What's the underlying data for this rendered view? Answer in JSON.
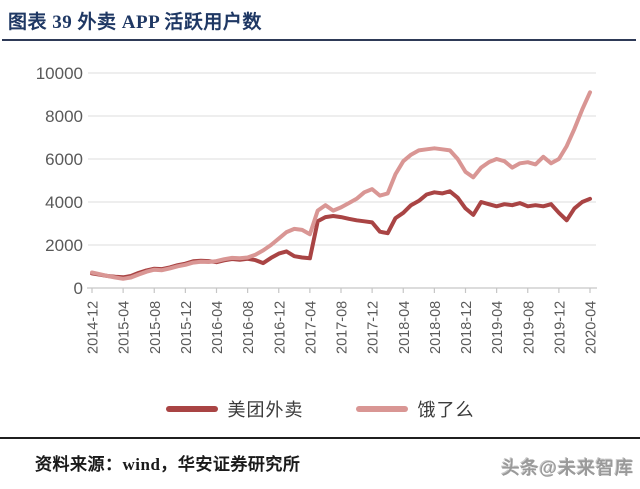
{
  "title": "图表 39  外卖 APP 活跃用户数",
  "footer": {
    "source": "资料来源：wind，华安证券研究所",
    "watermark": "头条@未来智库"
  },
  "colors": {
    "title_navy": "#1F3864",
    "rule_dark": "#2E3A57",
    "axis_line": "#C6C6C6",
    "gridline": "#DCDCDC",
    "tick_label_gray": "#595959",
    "meituan_red": "#A94444",
    "eleme_pink": "#D99694",
    "watermark_gray": "#9A9A9A"
  },
  "chart_data": {
    "type": "line",
    "title": "外卖 APP 活跃用户数",
    "xlabel": "",
    "ylabel": "",
    "ylim": [
      0,
      10000
    ],
    "y_ticks": [
      0,
      2000,
      4000,
      6000,
      8000,
      10000
    ],
    "grid": "horizontal",
    "legend_position": "bottom",
    "x_unit": "month",
    "x_start": "2014-12",
    "x_end": "2020-04",
    "x_tick_labels": [
      "2014-12",
      "2015-04",
      "2015-08",
      "2015-12",
      "2016-04",
      "2016-08",
      "2016-12",
      "2017-04",
      "2017-08",
      "2017-12",
      "2018-04",
      "2018-08",
      "2018-12",
      "2019-04",
      "2019-08",
      "2019-12",
      "2020-04"
    ],
    "x_tick_every_n_months": 4,
    "series": [
      {
        "name": "美团外卖",
        "color": "#A94444",
        "values": [
          680,
          620,
          560,
          520,
          500,
          560,
          700,
          820,
          900,
          880,
          960,
          1060,
          1130,
          1240,
          1270,
          1250,
          1200,
          1290,
          1350,
          1310,
          1360,
          1300,
          1160,
          1400,
          1600,
          1700,
          1480,
          1420,
          1380,
          3100,
          3300,
          3350,
          3300,
          3220,
          3150,
          3100,
          3050,
          2620,
          2550,
          3250,
          3500,
          3850,
          4050,
          4350,
          4450,
          4400,
          4500,
          4200,
          3700,
          3400,
          4000,
          3900,
          3800,
          3900,
          3850,
          3950,
          3800,
          3850,
          3800,
          3900,
          3500,
          3150,
          3700,
          4000,
          4150
        ]
      },
      {
        "name": "饿了么",
        "color": "#D99694",
        "values": [
          720,
          640,
          560,
          490,
          430,
          490,
          630,
          760,
          850,
          830,
          910,
          1010,
          1080,
          1180,
          1220,
          1210,
          1250,
          1340,
          1400,
          1380,
          1420,
          1550,
          1750,
          2000,
          2300,
          2600,
          2750,
          2700,
          2500,
          3600,
          3850,
          3600,
          3750,
          3950,
          4150,
          4450,
          4600,
          4300,
          4400,
          5300,
          5900,
          6200,
          6400,
          6450,
          6500,
          6450,
          6400,
          6000,
          5400,
          5150,
          5600,
          5850,
          6000,
          5900,
          5600,
          5800,
          5850,
          5750,
          6100,
          5800,
          6000,
          6600,
          7400,
          8300,
          9100
        ]
      }
    ]
  }
}
